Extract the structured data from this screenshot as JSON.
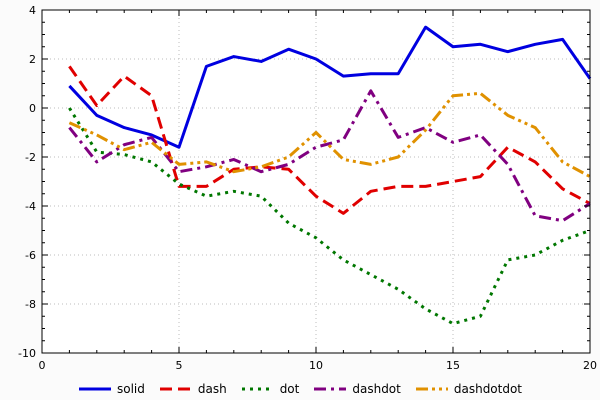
{
  "figure": {
    "background": "#fbfbfb",
    "plot_background": "#ffffff",
    "frame_color": "#000000",
    "tick_label_color": "#000000",
    "grid_color": "#bdbdbd"
  },
  "chart_data": {
    "type": "line",
    "title": "",
    "xlabel": "",
    "ylabel": "",
    "xlim": [
      0,
      20
    ],
    "ylim": [
      -10,
      4
    ],
    "xticks": [
      0,
      5,
      10,
      15,
      20
    ],
    "yticks": [
      -10,
      -8,
      -6,
      -4,
      -2,
      0,
      2,
      4
    ],
    "x_minor_step": 1,
    "y_minor_step": 0.5,
    "grid": true,
    "legend_position": "bottom",
    "x": [
      1,
      2,
      3,
      4,
      5,
      6,
      7,
      8,
      9,
      10,
      11,
      12,
      13,
      14,
      15,
      16,
      17,
      18,
      19,
      20
    ],
    "series": [
      {
        "name": "solid",
        "color": "#0000e0",
        "dash": "",
        "values": [
          0.9,
          -0.3,
          -0.8,
          -1.1,
          -1.6,
          1.7,
          2.1,
          1.9,
          2.4,
          2.0,
          1.3,
          1.4,
          1.4,
          3.3,
          2.5,
          2.6,
          2.3,
          2.6,
          2.8,
          1.2
        ]
      },
      {
        "name": "dash",
        "color": "#e00000",
        "dash": "12,6",
        "values": [
          1.7,
          0.1,
          1.3,
          0.5,
          -3.2,
          -3.2,
          -2.5,
          -2.4,
          -2.5,
          -3.6,
          -4.3,
          -3.4,
          -3.2,
          -3.2,
          -3.0,
          -2.8,
          -1.6,
          -2.2,
          -3.3,
          -3.9
        ]
      },
      {
        "name": "dot",
        "color": "#007700",
        "dash": "3,5",
        "values": [
          0.0,
          -1.8,
          -1.9,
          -2.2,
          -3.1,
          -3.6,
          -3.4,
          -3.6,
          -4.7,
          -5.3,
          -6.2,
          -6.8,
          -7.4,
          -8.2,
          -8.8,
          -8.5,
          -6.2,
          -6.0,
          -5.4,
          -5.0
        ]
      },
      {
        "name": "dashdot",
        "color": "#800080",
        "dash": "12,5,3,5",
        "values": [
          -0.8,
          -2.2,
          -1.5,
          -1.2,
          -2.6,
          -2.4,
          -2.1,
          -2.6,
          -2.3,
          -1.6,
          -1.3,
          0.7,
          -1.2,
          -0.8,
          -1.4,
          -1.1,
          -2.3,
          -4.4,
          -4.6,
          -3.9
        ]
      },
      {
        "name": "dashdotdot",
        "color": "#e09100",
        "dash": "12,4,3,4,3,4",
        "values": [
          -0.6,
          -1.1,
          -1.7,
          -1.4,
          -2.3,
          -2.2,
          -2.6,
          -2.4,
          -2.0,
          -1.0,
          -2.1,
          -2.3,
          -2.0,
          -0.9,
          0.5,
          0.6,
          -0.3,
          -0.8,
          -2.2,
          -2.8
        ]
      }
    ]
  }
}
